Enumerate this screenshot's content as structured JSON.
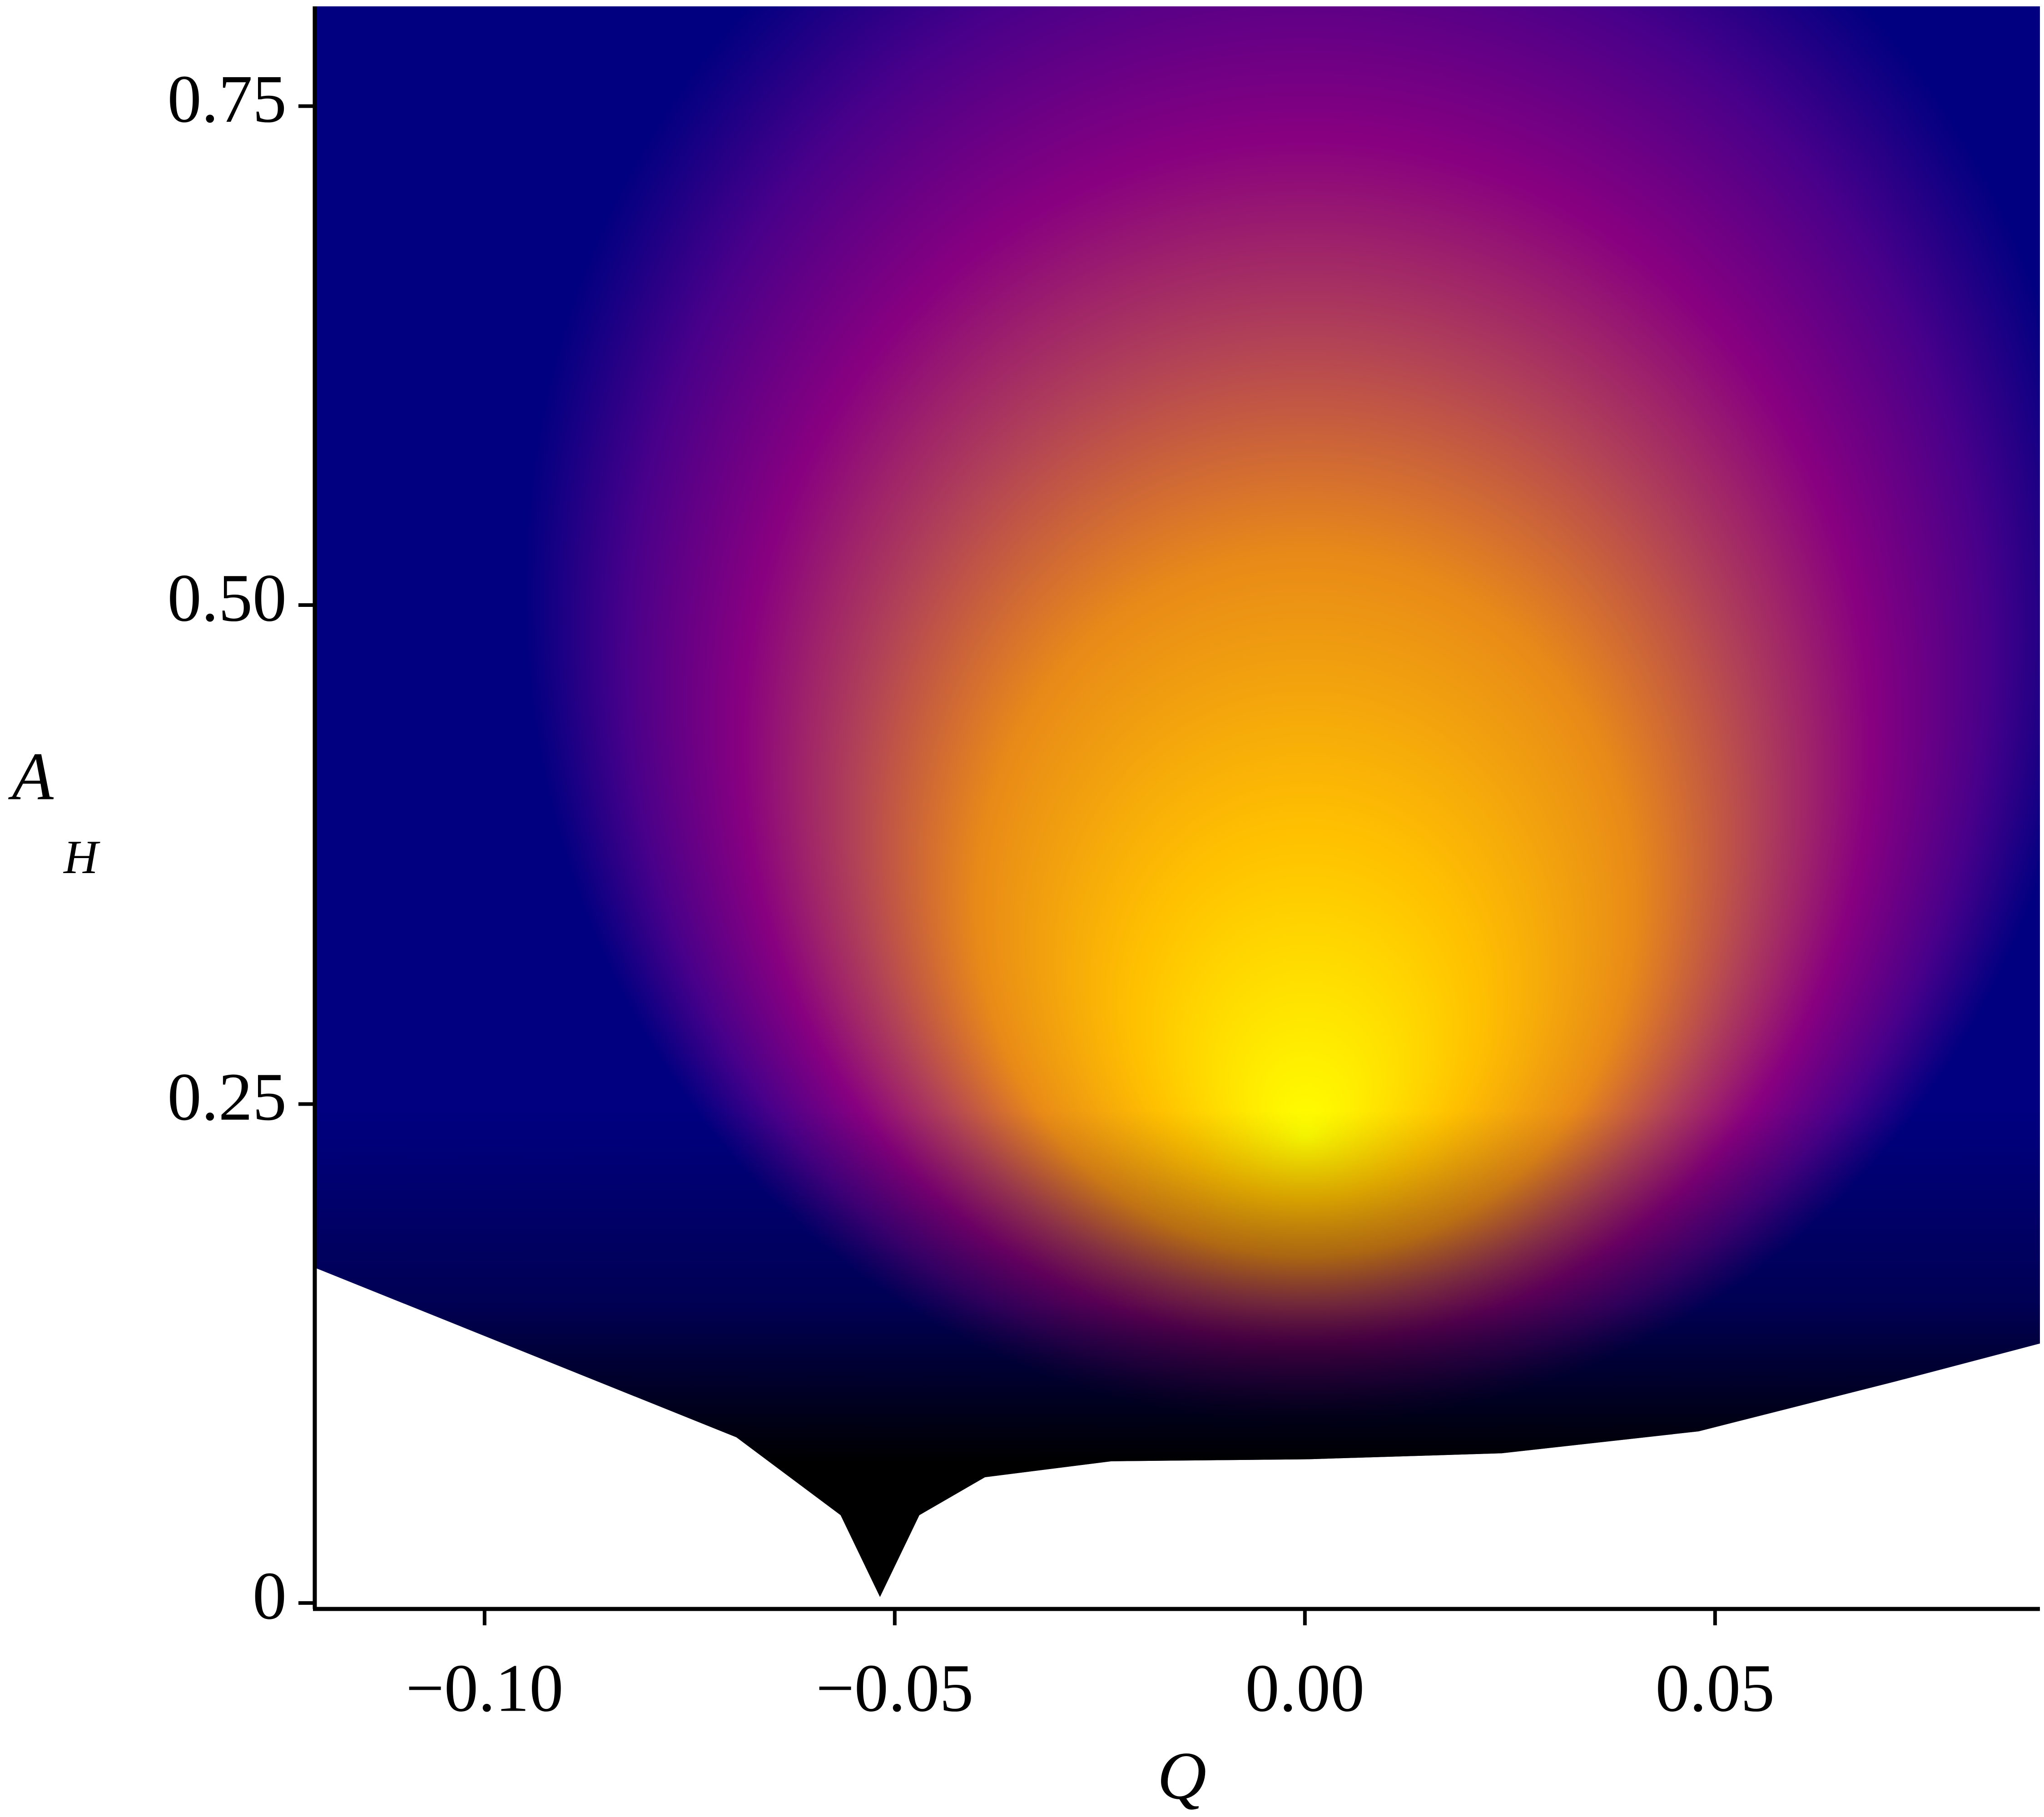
{
  "chart_data": {
    "type": "area",
    "xlabel": "Q",
    "ylabel": "A",
    "ylabel_subscript": "H",
    "x": [
      -0.1207,
      -0.0693,
      -0.0566,
      -0.0518,
      -0.047,
      -0.039,
      -0.0236,
      0.0003,
      0.024,
      0.048,
      0.072,
      0.0896
    ],
    "values": [
      0.168,
      0.083,
      0.044,
      0.003,
      0.044,
      0.063,
      0.071,
      0.072,
      0.075,
      0.086,
      0.111,
      0.13
    ],
    "xlim": [
      -0.1207,
      0.0896
    ],
    "ylim": [
      -0.003,
      0.8
    ],
    "xticks": [
      {
        "value": -0.1,
        "label": "−0.10"
      },
      {
        "value": -0.05,
        "label": "−0.05"
      },
      {
        "value": 0,
        "label": "0.00"
      },
      {
        "value": 0.05,
        "label": "0.05"
      }
    ],
    "yticks": [
      0,
      0.25,
      {
        "value": 0.5,
        "label": "0.50"
      },
      0.75
    ]
  }
}
